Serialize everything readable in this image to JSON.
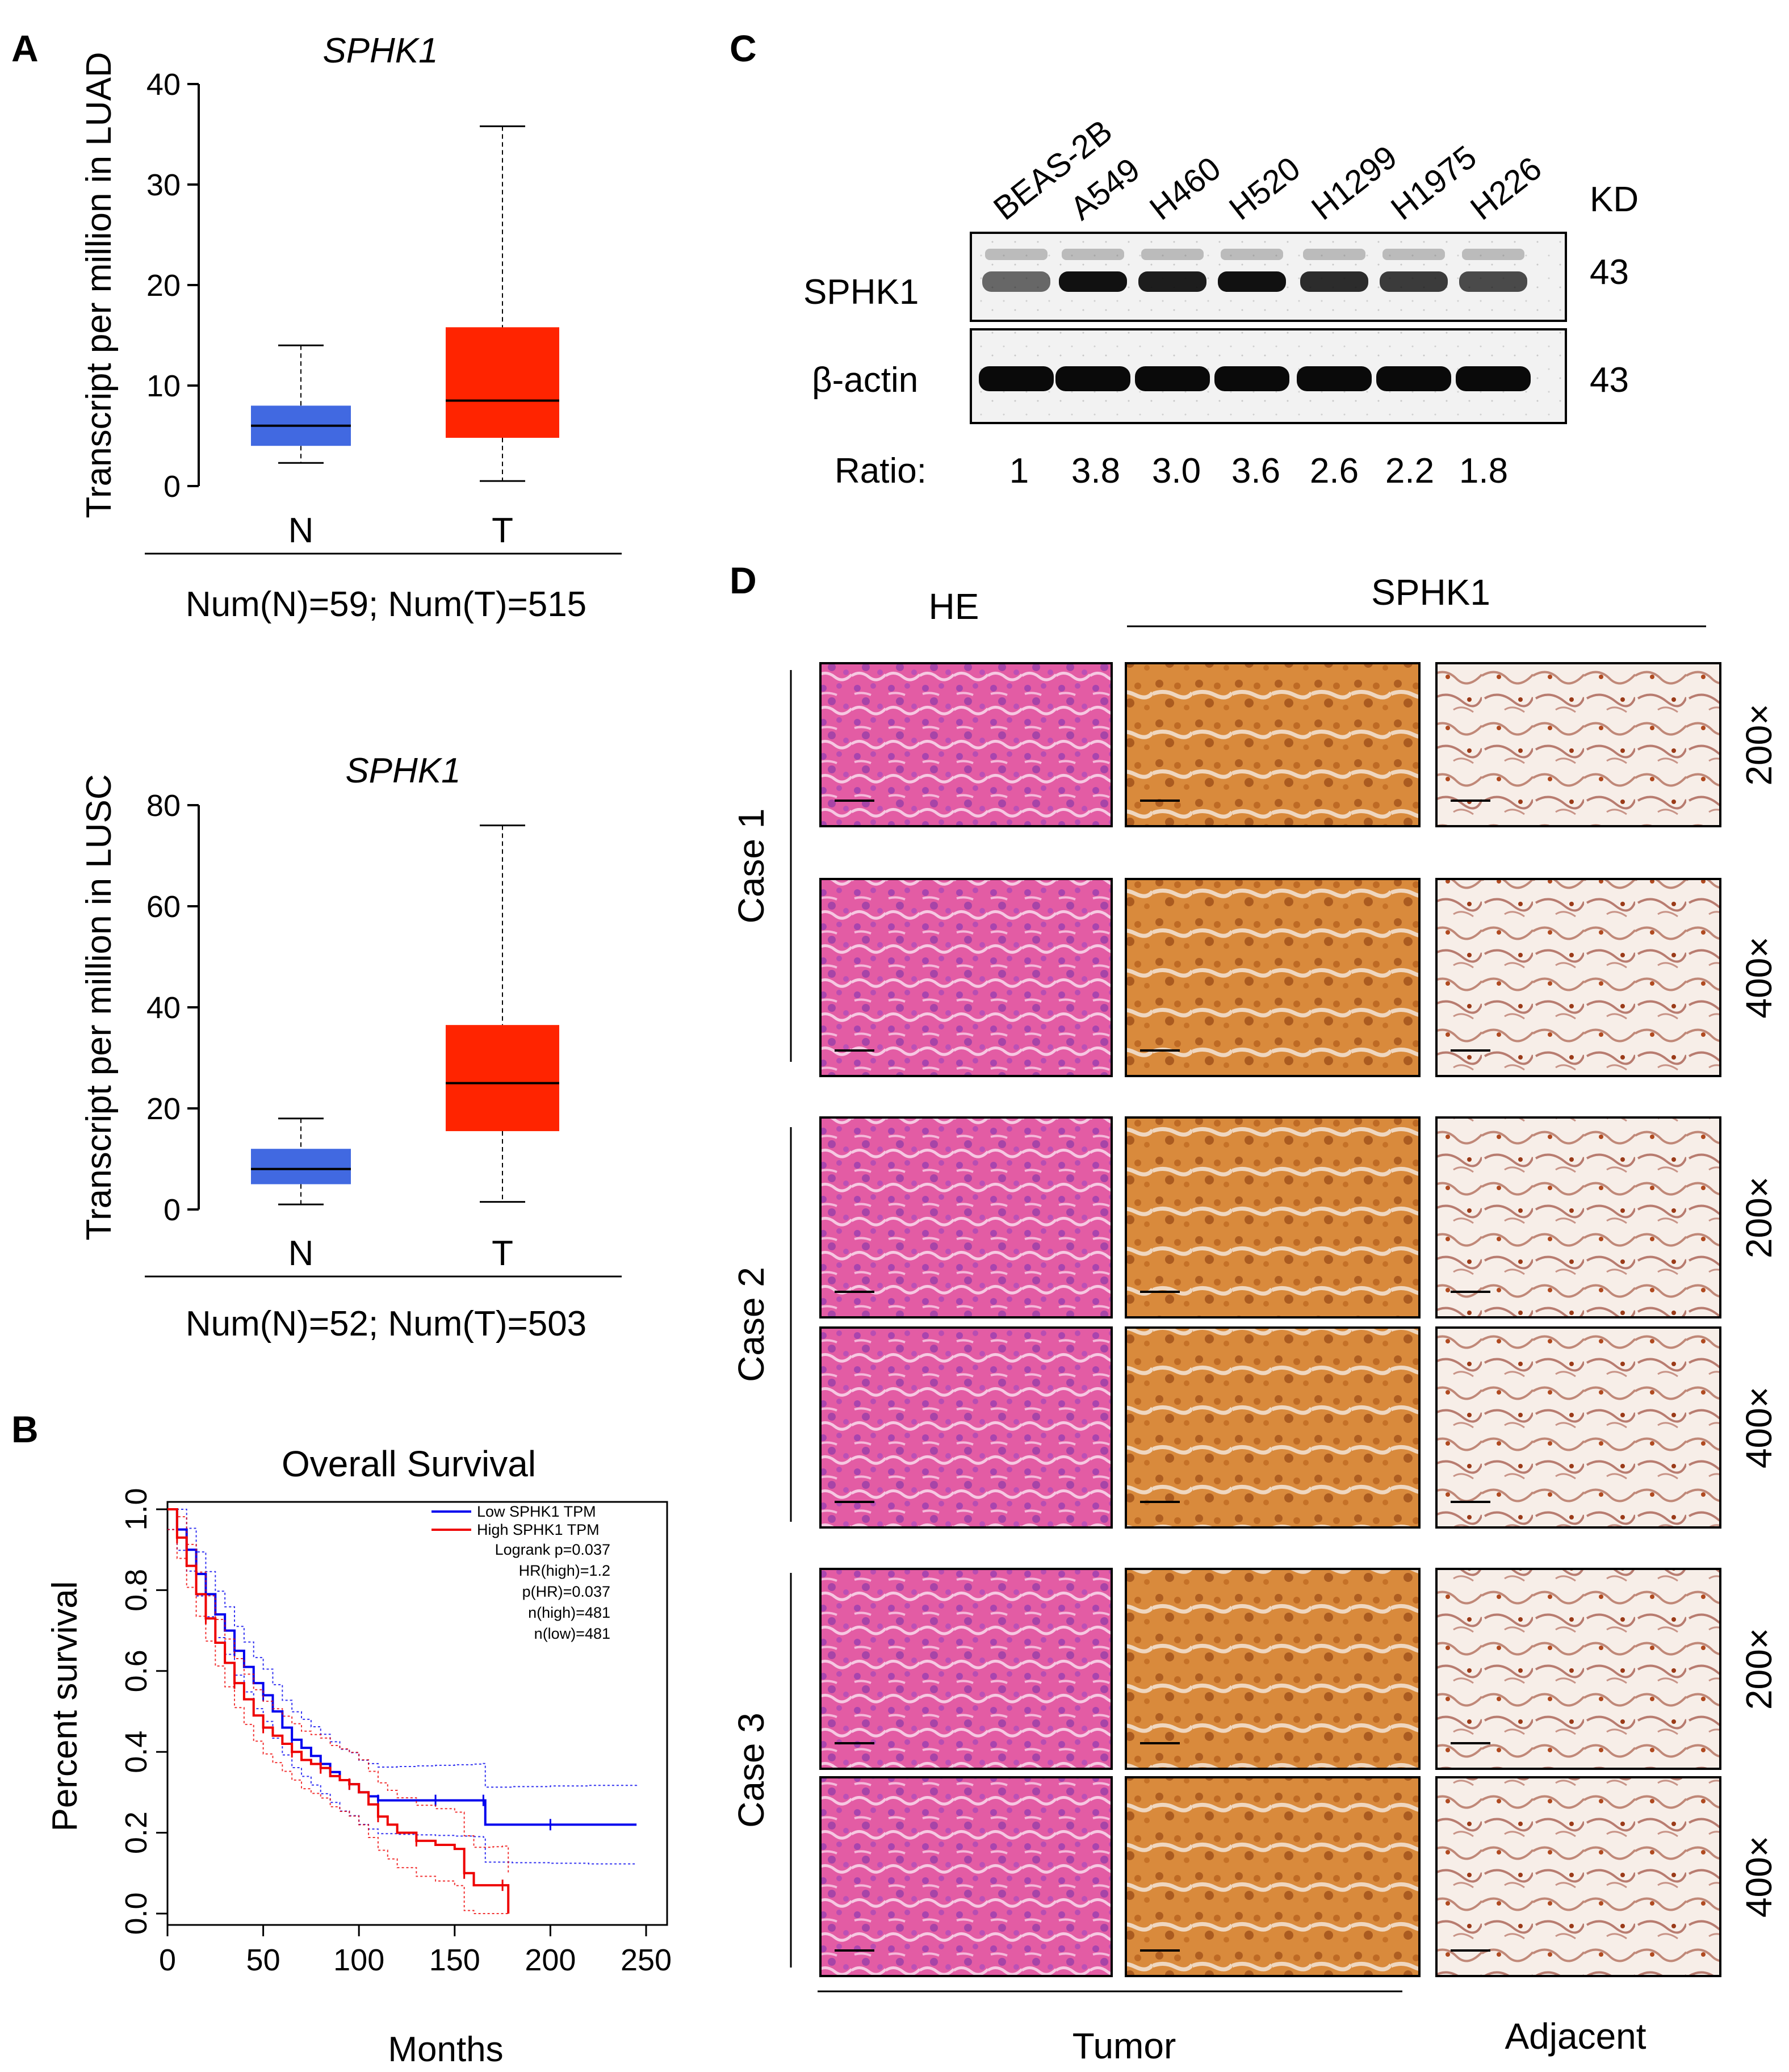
{
  "colors": {
    "normal": "#4169E1",
    "tumor": "#FF2400",
    "low": "#0000EE",
    "high": "#EE0000",
    "he_pink": "#E0509A",
    "dab_brown": "#C87A30",
    "adjacent_bg": "#F6E9E0"
  },
  "panels": {
    "A": "A",
    "B": "B",
    "C": "C",
    "D": "D"
  },
  "chart_data": [
    {
      "type": "boxplot",
      "title": "SPHK1",
      "ylabel": "Transcript per million in LUAD",
      "ylim": [
        0,
        40
      ],
      "yticks": [
        "0",
        "10",
        "20",
        "30",
        "40"
      ],
      "categories": [
        "N",
        "T"
      ],
      "boxes": [
        {
          "name": "N",
          "min": 2.3,
          "q1": 4.0,
          "median": 6.0,
          "q3": 8.0,
          "max": 14.0,
          "color": "#4169E1"
        },
        {
          "name": "T",
          "min": 0.5,
          "q1": 4.8,
          "median": 8.5,
          "q3": 15.8,
          "max": 35.8,
          "color": "#FF2400"
        }
      ],
      "footer": "Num(N)=59; Num(T)=515"
    },
    {
      "type": "boxplot",
      "title": "SPHK1",
      "ylabel": "Transcript per million in LUSC",
      "ylim": [
        0,
        80
      ],
      "yticks": [
        "0",
        "20",
        "40",
        "60",
        "80"
      ],
      "categories": [
        "N",
        "T"
      ],
      "boxes": [
        {
          "name": "N",
          "min": 1.0,
          "q1": 5.0,
          "median": 8.0,
          "q3": 12.0,
          "max": 18.0,
          "color": "#4169E1"
        },
        {
          "name": "T",
          "min": 1.5,
          "q1": 15.5,
          "median": 25.0,
          "q3": 36.5,
          "max": 76.0,
          "color": "#FF2400"
        }
      ],
      "footer": "Num(N)=52; Num(T)=503"
    },
    {
      "type": "line",
      "subtype": "kaplan-meier",
      "title": "Overall Survival",
      "xlabel": "Months",
      "ylabel": "Percent survival",
      "xlim": [
        0,
        250
      ],
      "ylim": [
        0,
        1.0
      ],
      "xticks": [
        "0",
        "50",
        "100",
        "150",
        "200",
        "250"
      ],
      "yticks": [
        "0.0",
        "0.2",
        "0.4",
        "0.6",
        "0.8",
        "1.0"
      ],
      "legend": [
        "Low SPHK1 TPM",
        "High SPHK1 TPM"
      ],
      "stats": [
        "Logrank p=0.037",
        "HR(high)=1.2",
        "p(HR)=0.037",
        "n(high)=481",
        "n(low)=481"
      ],
      "series": [
        {
          "name": "Low SPHK1 TPM",
          "color": "#0000EE",
          "x": [
            0,
            5,
            10,
            15,
            20,
            25,
            30,
            35,
            40,
            45,
            50,
            55,
            60,
            65,
            70,
            75,
            80,
            85,
            90,
            95,
            100,
            105,
            110,
            120,
            130,
            140,
            150,
            160,
            165,
            166,
            180,
            200,
            220,
            245
          ],
          "y": [
            1.0,
            0.95,
            0.9,
            0.84,
            0.79,
            0.74,
            0.7,
            0.65,
            0.61,
            0.57,
            0.54,
            0.5,
            0.46,
            0.43,
            0.41,
            0.39,
            0.37,
            0.35,
            0.33,
            0.32,
            0.3,
            0.29,
            0.28,
            0.28,
            0.28,
            0.28,
            0.28,
            0.28,
            0.28,
            0.22,
            0.22,
            0.22,
            0.22,
            0.22
          ]
        },
        {
          "name": "High SPHK1 TPM",
          "color": "#EE0000",
          "x": [
            0,
            5,
            10,
            15,
            20,
            25,
            30,
            35,
            40,
            45,
            50,
            55,
            60,
            65,
            70,
            75,
            80,
            85,
            90,
            95,
            100,
            105,
            110,
            115,
            120,
            130,
            140,
            150,
            155,
            160,
            170,
            175,
            178
          ],
          "y": [
            1.0,
            0.93,
            0.86,
            0.79,
            0.73,
            0.67,
            0.62,
            0.57,
            0.53,
            0.49,
            0.46,
            0.44,
            0.42,
            0.4,
            0.38,
            0.37,
            0.36,
            0.34,
            0.33,
            0.32,
            0.3,
            0.27,
            0.24,
            0.22,
            0.2,
            0.18,
            0.17,
            0.16,
            0.1,
            0.07,
            0.07,
            0.07,
            0.0
          ]
        }
      ]
    }
  ],
  "western_blot": {
    "lanes": [
      "BEAS-2B",
      "A549",
      "H460",
      "H520",
      "H1299",
      "H1975",
      "H226"
    ],
    "kd_header": "KD",
    "rows": [
      {
        "label": "SPHK1",
        "kd": "43"
      },
      {
        "label": "β-actin",
        "kd": "43"
      }
    ],
    "ratio_label": "Ratio:",
    "ratios": [
      "1",
      "3.8",
      "3.0",
      "3.6",
      "2.6",
      "2.2",
      "1.8"
    ]
  },
  "ihc": {
    "col_he": "HE",
    "col_sphk1": "SPHK1",
    "bottom_tumor": "Tumor",
    "bottom_adjacent": "Adjacent",
    "cases": [
      "Case 1",
      "Case 2",
      "Case 3"
    ],
    "mags": [
      "200×",
      "400×",
      "200×",
      "400×",
      "200×",
      "400×"
    ]
  }
}
